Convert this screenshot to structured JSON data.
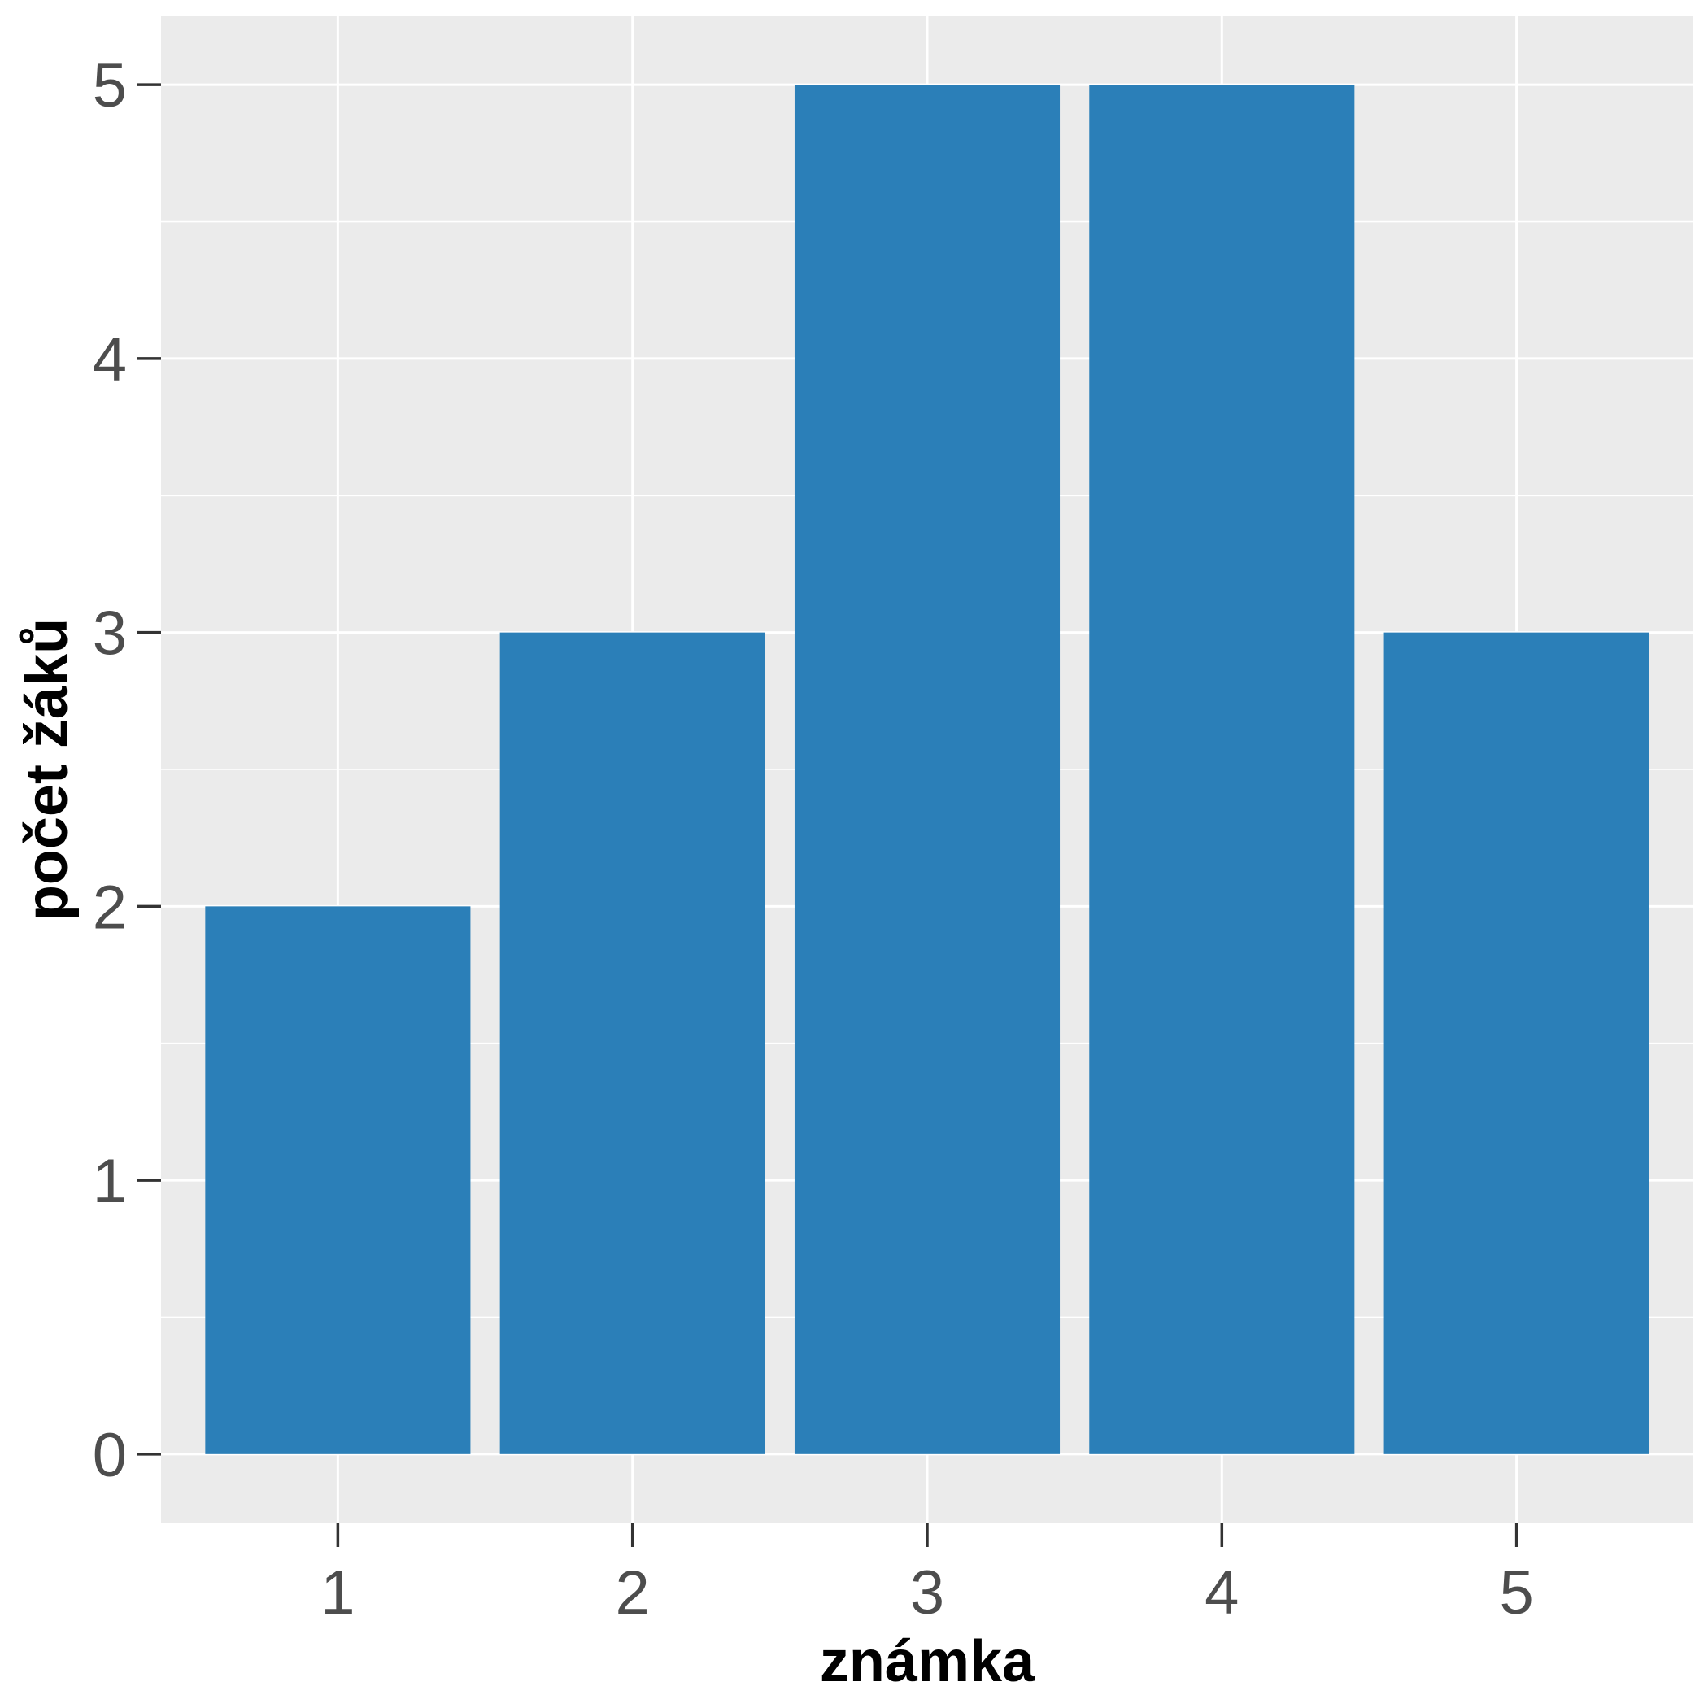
{
  "chart_data": {
    "type": "bar",
    "categories": [
      "1",
      "2",
      "3",
      "4",
      "5"
    ],
    "values": [
      2,
      3,
      5,
      5,
      3
    ],
    "title": "",
    "xlabel": "známka",
    "ylabel": "počet žáků",
    "ylim": [
      -0.25,
      5.25
    ],
    "yticks": [
      "0",
      "1",
      "2",
      "3",
      "4",
      "5"
    ],
    "grid": true,
    "colors": {
      "bar": "#2b7fb8",
      "panel": "#ebebeb",
      "grid": "#ffffff",
      "tick": "#333333"
    }
  }
}
